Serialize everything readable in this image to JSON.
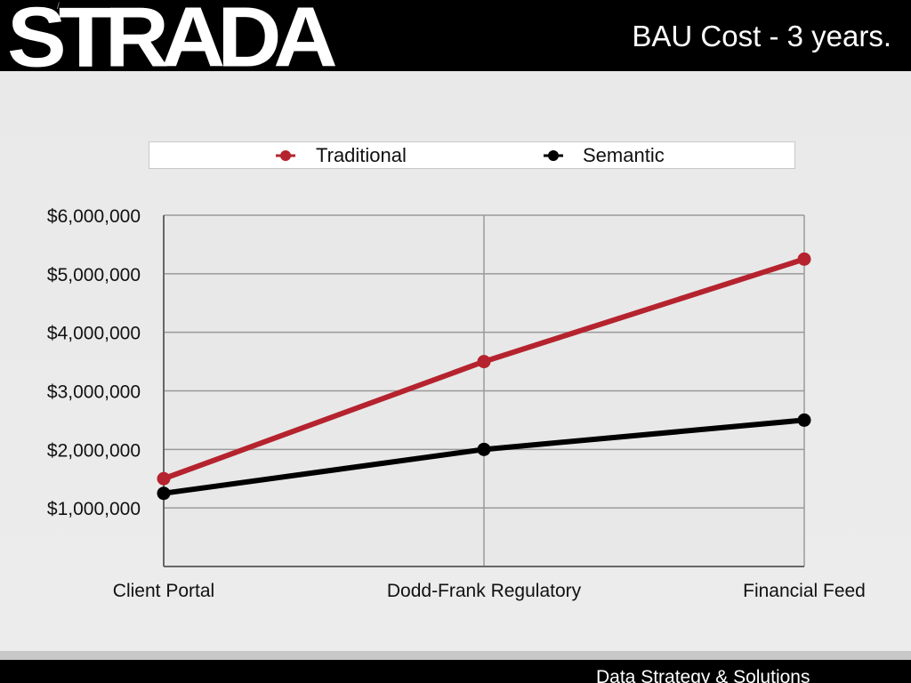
{
  "header": {
    "logo_text": "STRADA",
    "tick": "/",
    "title": "BAU Cost - 3 years."
  },
  "footer": {
    "text": "Data Strategy & Solutions"
  },
  "colors": {
    "traditional": "#b5232e",
    "semantic": "#000000",
    "grid": "#9a9a9a",
    "plot_bg": "#e8e8e8"
  },
  "chart_data": {
    "type": "line",
    "title": "",
    "xlabel": "",
    "ylabel": "",
    "categories": [
      "Client Portal",
      "Dodd-Frank Regulatory",
      "Financial Feed"
    ],
    "series": [
      {
        "name": "Traditional",
        "values": [
          1500000,
          3500000,
          5250000
        ]
      },
      {
        "name": "Semantic",
        "values": [
          1250000,
          2000000,
          2500000
        ]
      }
    ],
    "ylim": [
      0,
      6000000
    ],
    "yticks": [
      1000000,
      2000000,
      3000000,
      4000000,
      5000000,
      6000000
    ],
    "ytick_labels": [
      "$1,000,000",
      "$2,000,000",
      "$3,000,000",
      "$4,000,000",
      "$5,000,000",
      "$6,000,000"
    ],
    "grid": true,
    "legend_position": "top"
  }
}
